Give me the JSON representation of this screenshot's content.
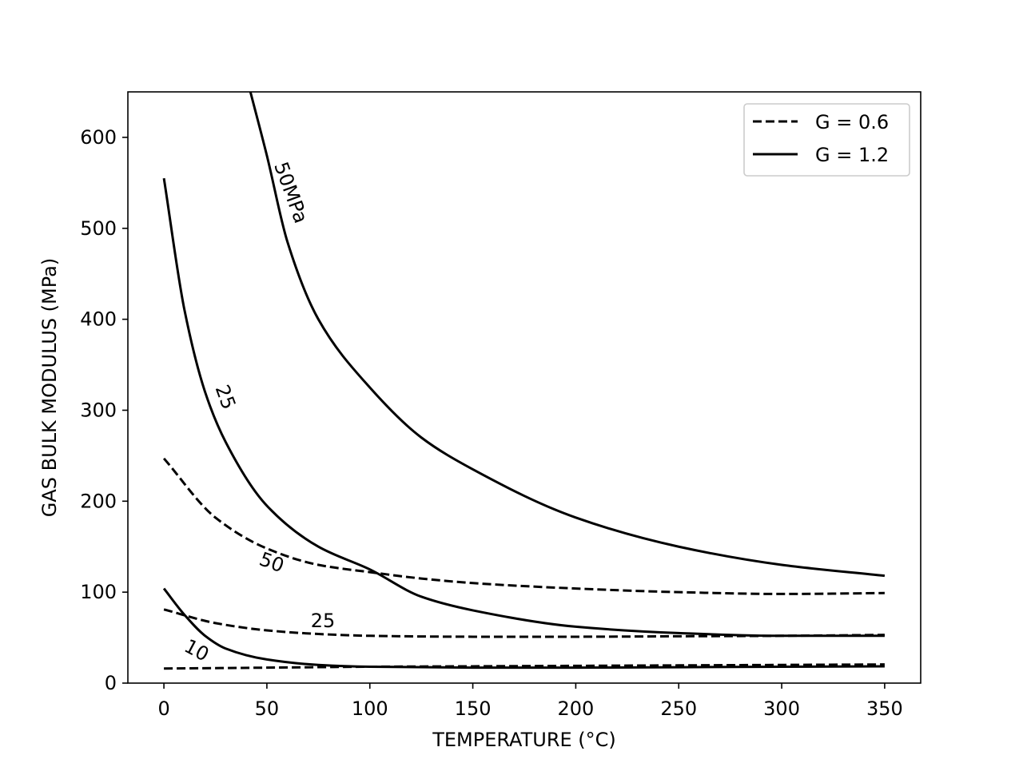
{
  "chart_data": {
    "type": "line",
    "title": "",
    "xlabel": "TEMPERATURE (°C)",
    "ylabel": "GAS BULK MODULUS (MPa)",
    "xlim": [
      -17.5,
      367.5
    ],
    "ylim": [
      0,
      650
    ],
    "xticks": [
      0,
      50,
      100,
      150,
      200,
      250,
      300,
      350
    ],
    "yticks": [
      0,
      100,
      200,
      300,
      400,
      500,
      600
    ],
    "grid": false,
    "legend": {
      "position": "top-right",
      "entries": [
        {
          "label": "G = 0.6",
          "style": "dashed"
        },
        {
          "label": "G = 1.2",
          "style": "solid"
        }
      ]
    },
    "series": [
      {
        "name": "G = 0.6, 10 MPa",
        "style": "dashed",
        "label": "",
        "x": [
          0,
          50,
          100,
          150,
          200,
          250,
          300,
          350
        ],
        "y": [
          16,
          17,
          18,
          18.5,
          19,
          19.5,
          20,
          20.5
        ]
      },
      {
        "name": "G = 0.6, 25 MPa",
        "style": "dashed",
        "label": "25",
        "x": [
          0,
          25,
          50,
          75,
          100,
          150,
          200,
          250,
          300,
          350
        ],
        "y": [
          81,
          66,
          58,
          54,
          52,
          51,
          51,
          51.5,
          52,
          53
        ]
      },
      {
        "name": "G = 0.6, 50 MPa",
        "style": "dashed",
        "label": "50",
        "x": [
          0,
          25,
          50,
          75,
          100,
          125,
          150,
          200,
          250,
          300,
          350
        ],
        "y": [
          247,
          182,
          148,
          130,
          122,
          115,
          110,
          104,
          100,
          98,
          99
        ]
      },
      {
        "name": "G = 1.2, 10 MPa",
        "style": "solid",
        "label": "10",
        "x": [
          0,
          10,
          20,
          30,
          50,
          75,
          100,
          150,
          200,
          250,
          300,
          350
        ],
        "y": [
          104,
          75,
          52,
          38,
          26,
          20,
          18,
          17,
          17,
          17.5,
          18,
          18.5
        ]
      },
      {
        "name": "G = 1.2, 25 MPa",
        "style": "solid",
        "label": "25",
        "x": [
          0,
          10,
          20,
          30,
          50,
          75,
          100,
          125,
          150,
          200,
          250,
          300,
          350
        ],
        "y": [
          555,
          410,
          320,
          265,
          195,
          150,
          125,
          95,
          80,
          62,
          55,
          52,
          52
        ]
      },
      {
        "name": "G = 1.2, 50 MPa",
        "style": "solid",
        "label": "50MPa",
        "x": [
          42,
          50,
          60,
          75,
          100,
          125,
          150,
          200,
          250,
          300,
          350
        ],
        "y": [
          650,
          580,
          485,
          400,
          325,
          270,
          235,
          182,
          150,
          130,
          118
        ]
      }
    ]
  }
}
